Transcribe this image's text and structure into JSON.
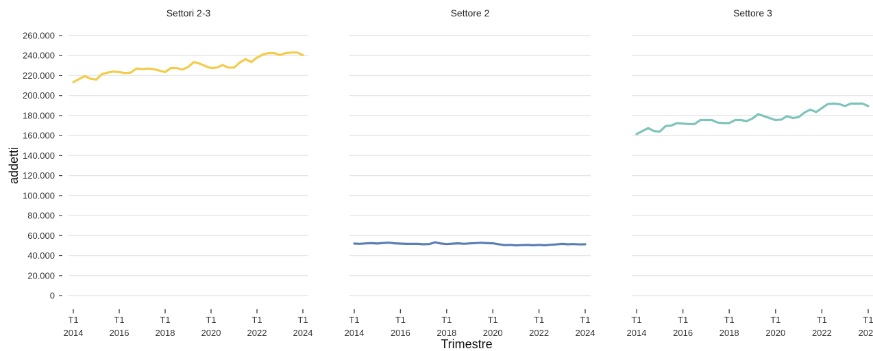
{
  "chart_data": {
    "type": "line",
    "ylabel": "addetti",
    "xlabel": "Trimestre",
    "ylim": [
      0,
      260000
    ],
    "y_ticks": [
      0,
      20000,
      40000,
      60000,
      80000,
      100000,
      120000,
      140000,
      160000,
      180000,
      200000,
      220000,
      240000,
      260000
    ],
    "y_tick_labels": [
      "0",
      "20.000",
      "40.000",
      "60.000",
      "80.000",
      "100.000",
      "120.000",
      "140.000",
      "160.000",
      "180.000",
      "200.000",
      "220.000",
      "240.000",
      "260.000"
    ],
    "x_ticks": [
      "2014-Q1",
      "2016-Q1",
      "2018-Q1",
      "2020-Q1",
      "2022-Q1",
      "2024-Q1"
    ],
    "x_tick_labels": [
      {
        "q": "T1",
        "year": "2014"
      },
      {
        "q": "T1",
        "year": "2016"
      },
      {
        "q": "T1",
        "year": "2018"
      },
      {
        "q": "T1",
        "year": "2020"
      },
      {
        "q": "T1",
        "year": "2022"
      },
      {
        "q": "T1",
        "year": "2024"
      }
    ],
    "x": [
      "2014-Q1",
      "2014-Q2",
      "2014-Q3",
      "2014-Q4",
      "2015-Q1",
      "2015-Q2",
      "2015-Q3",
      "2015-Q4",
      "2016-Q1",
      "2016-Q2",
      "2016-Q3",
      "2016-Q4",
      "2017-Q1",
      "2017-Q2",
      "2017-Q3",
      "2017-Q4",
      "2018-Q1",
      "2018-Q2",
      "2018-Q3",
      "2018-Q4",
      "2019-Q1",
      "2019-Q2",
      "2019-Q3",
      "2019-Q4",
      "2020-Q1",
      "2020-Q2",
      "2020-Q3",
      "2020-Q4",
      "2021-Q1",
      "2021-Q2",
      "2021-Q3",
      "2021-Q4",
      "2022-Q1",
      "2022-Q2",
      "2022-Q3",
      "2022-Q4",
      "2023-Q1",
      "2023-Q2",
      "2023-Q3",
      "2023-Q4",
      "2024-Q1"
    ],
    "grid": true,
    "panels": [
      {
        "title": "Settori 2-3",
        "color": "#F2CC4A",
        "values": [
          213500,
          216500,
          219500,
          216800,
          216000,
          221500,
          223000,
          224000,
          223500,
          222500,
          223000,
          227000,
          226500,
          227000,
          226500,
          225000,
          223500,
          227500,
          227500,
          226000,
          228500,
          233500,
          232000,
          229500,
          227500,
          228000,
          230500,
          228000,
          228000,
          233000,
          236500,
          233500,
          238000,
          241000,
          242500,
          242500,
          240500,
          242500,
          243000,
          243000,
          240500
        ]
      },
      {
        "title": "Settore 2",
        "color": "#5B7FB5",
        "values": [
          52000,
          51800,
          52200,
          52400,
          52100,
          52600,
          52900,
          52300,
          52000,
          51700,
          51800,
          51700,
          51300,
          51500,
          53300,
          52100,
          51500,
          51900,
          52300,
          51800,
          52200,
          52500,
          52800,
          52400,
          52300,
          51400,
          50400,
          50600,
          50200,
          50400,
          50600,
          50300,
          50600,
          50300,
          50800,
          51200,
          51700,
          51300,
          51500,
          51200,
          51300
        ]
      },
      {
        "title": "Settore 3",
        "color": "#7FC3BD",
        "values": [
          161500,
          164500,
          167500,
          164500,
          164000,
          169500,
          170000,
          172500,
          172000,
          171500,
          171500,
          175500,
          175500,
          175500,
          173000,
          172500,
          172500,
          175500,
          175500,
          174500,
          177000,
          181500,
          179500,
          177500,
          175500,
          176000,
          179500,
          177500,
          178500,
          183000,
          186000,
          183500,
          187500,
          191500,
          192000,
          191500,
          189500,
          192000,
          192000,
          192000,
          189500
        ]
      }
    ]
  }
}
